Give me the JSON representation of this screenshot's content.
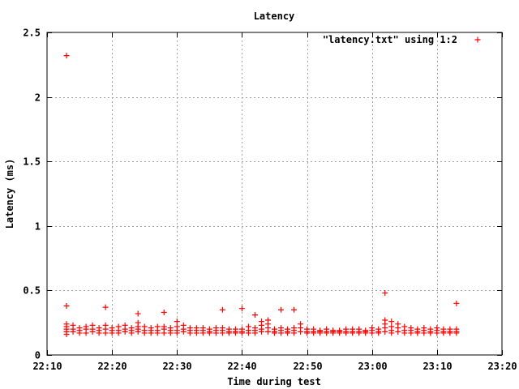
{
  "chart_data": {
    "type": "scatter",
    "title": "Latency",
    "xlabel": "Time during test",
    "ylabel": "Latency (ms)",
    "legend_position": "top-right",
    "grid": true,
    "xlim": [
      "22:10",
      "23:20"
    ],
    "ylim": [
      0,
      2.5
    ],
    "x_ticks": [
      "22:10",
      "22:20",
      "22:30",
      "22:40",
      "22:50",
      "23:00",
      "23:10",
      "23:20"
    ],
    "y_ticks": [
      "0",
      "0.5",
      "1",
      "1.5",
      "2",
      "2.5"
    ],
    "series": [
      {
        "name": "\"latency.txt\" using 1:2",
        "color": "#ff0000",
        "marker": "plus",
        "points": [
          [
            "22:13",
            2.32
          ],
          [
            "22:13",
            0.38
          ],
          [
            "22:13",
            0.24
          ],
          [
            "22:13",
            0.22
          ],
          [
            "22:13",
            0.2
          ],
          [
            "22:13",
            0.18
          ],
          [
            "22:13",
            0.16
          ],
          [
            "22:14",
            0.23
          ],
          [
            "22:14",
            0.2
          ],
          [
            "22:14",
            0.18
          ],
          [
            "22:15",
            0.21
          ],
          [
            "22:15",
            0.19
          ],
          [
            "22:15",
            0.17
          ],
          [
            "22:16",
            0.22
          ],
          [
            "22:16",
            0.2
          ],
          [
            "22:16",
            0.17
          ],
          [
            "22:17",
            0.23
          ],
          [
            "22:17",
            0.2
          ],
          [
            "22:17",
            0.18
          ],
          [
            "22:18",
            0.21
          ],
          [
            "22:18",
            0.19
          ],
          [
            "22:18",
            0.17
          ],
          [
            "22:19",
            0.37
          ],
          [
            "22:19",
            0.23
          ],
          [
            "22:19",
            0.2
          ],
          [
            "22:19",
            0.17
          ],
          [
            "22:20",
            0.21
          ],
          [
            "22:20",
            0.19
          ],
          [
            "22:20",
            0.17
          ],
          [
            "22:21",
            0.22
          ],
          [
            "22:21",
            0.19
          ],
          [
            "22:21",
            0.17
          ],
          [
            "22:22",
            0.23
          ],
          [
            "22:22",
            0.2
          ],
          [
            "22:22",
            0.18
          ],
          [
            "22:23",
            0.21
          ],
          [
            "22:23",
            0.19
          ],
          [
            "22:23",
            0.17
          ],
          [
            "22:24",
            0.32
          ],
          [
            "22:24",
            0.25
          ],
          [
            "22:24",
            0.22
          ],
          [
            "22:24",
            0.2
          ],
          [
            "22:24",
            0.18
          ],
          [
            "22:25",
            0.22
          ],
          [
            "22:25",
            0.19
          ],
          [
            "22:25",
            0.17
          ],
          [
            "22:26",
            0.21
          ],
          [
            "22:26",
            0.19
          ],
          [
            "22:26",
            0.17
          ],
          [
            "22:27",
            0.22
          ],
          [
            "22:27",
            0.19
          ],
          [
            "22:27",
            0.17
          ],
          [
            "22:28",
            0.33
          ],
          [
            "22:28",
            0.22
          ],
          [
            "22:28",
            0.2
          ],
          [
            "22:28",
            0.17
          ],
          [
            "22:29",
            0.21
          ],
          [
            "22:29",
            0.19
          ],
          [
            "22:29",
            0.17
          ],
          [
            "22:30",
            0.26
          ],
          [
            "22:30",
            0.22
          ],
          [
            "22:30",
            0.19
          ],
          [
            "22:30",
            0.17
          ],
          [
            "22:31",
            0.23
          ],
          [
            "22:31",
            0.2
          ],
          [
            "22:31",
            0.18
          ],
          [
            "22:32",
            0.21
          ],
          [
            "22:32",
            0.19
          ],
          [
            "22:32",
            0.17
          ],
          [
            "22:33",
            0.21
          ],
          [
            "22:33",
            0.19
          ],
          [
            "22:33",
            0.17
          ],
          [
            "22:34",
            0.21
          ],
          [
            "22:34",
            0.19
          ],
          [
            "22:34",
            0.17
          ],
          [
            "22:35",
            0.2
          ],
          [
            "22:35",
            0.18
          ],
          [
            "22:35",
            0.17
          ],
          [
            "22:36",
            0.21
          ],
          [
            "22:36",
            0.19
          ],
          [
            "22:36",
            0.17
          ],
          [
            "22:37",
            0.35
          ],
          [
            "22:37",
            0.21
          ],
          [
            "22:37",
            0.19
          ],
          [
            "22:37",
            0.17
          ],
          [
            "22:38",
            0.2
          ],
          [
            "22:38",
            0.18
          ],
          [
            "22:38",
            0.17
          ],
          [
            "22:39",
            0.2
          ],
          [
            "22:39",
            0.18
          ],
          [
            "22:39",
            0.17
          ],
          [
            "22:40",
            0.36
          ],
          [
            "22:40",
            0.2
          ],
          [
            "22:40",
            0.18
          ],
          [
            "22:40",
            0.17
          ],
          [
            "22:41",
            0.22
          ],
          [
            "22:41",
            0.19
          ],
          [
            "22:41",
            0.17
          ],
          [
            "22:42",
            0.31
          ],
          [
            "22:42",
            0.21
          ],
          [
            "22:42",
            0.19
          ],
          [
            "22:42",
            0.17
          ],
          [
            "22:43",
            0.26
          ],
          [
            "22:43",
            0.23
          ],
          [
            "22:43",
            0.2
          ],
          [
            "22:43",
            0.18
          ],
          [
            "22:44",
            0.27
          ],
          [
            "22:44",
            0.24
          ],
          [
            "22:44",
            0.21
          ],
          [
            "22:44",
            0.18
          ],
          [
            "22:45",
            0.2
          ],
          [
            "22:45",
            0.18
          ],
          [
            "22:45",
            0.17
          ],
          [
            "22:46",
            0.35
          ],
          [
            "22:46",
            0.21
          ],
          [
            "22:46",
            0.19
          ],
          [
            "22:46",
            0.17
          ],
          [
            "22:47",
            0.2
          ],
          [
            "22:47",
            0.18
          ],
          [
            "22:47",
            0.17
          ],
          [
            "22:48",
            0.35
          ],
          [
            "22:48",
            0.21
          ],
          [
            "22:48",
            0.19
          ],
          [
            "22:48",
            0.17
          ],
          [
            "22:49",
            0.24
          ],
          [
            "22:49",
            0.21
          ],
          [
            "22:49",
            0.18
          ],
          [
            "22:50",
            0.2
          ],
          [
            "22:50",
            0.18
          ],
          [
            "22:50",
            0.17
          ],
          [
            "22:51",
            0.2
          ],
          [
            "22:51",
            0.18
          ],
          [
            "22:51",
            0.17
          ],
          [
            "22:52",
            0.19
          ],
          [
            "22:52",
            0.18
          ],
          [
            "22:52",
            0.17
          ],
          [
            "22:53",
            0.2
          ],
          [
            "22:53",
            0.18
          ],
          [
            "22:53",
            0.17
          ],
          [
            "22:54",
            0.19
          ],
          [
            "22:54",
            0.18
          ],
          [
            "22:54",
            0.17
          ],
          [
            "22:55",
            0.19
          ],
          [
            "22:55",
            0.18
          ],
          [
            "22:55",
            0.17
          ],
          [
            "22:56",
            0.2
          ],
          [
            "22:56",
            0.18
          ],
          [
            "22:56",
            0.17
          ],
          [
            "22:57",
            0.2
          ],
          [
            "22:57",
            0.18
          ],
          [
            "22:57",
            0.17
          ],
          [
            "22:58",
            0.2
          ],
          [
            "22:58",
            0.18
          ],
          [
            "22:58",
            0.17
          ],
          [
            "22:59",
            0.19
          ],
          [
            "22:59",
            0.18
          ],
          [
            "22:59",
            0.17
          ],
          [
            "23:00",
            0.21
          ],
          [
            "23:00",
            0.19
          ],
          [
            "23:00",
            0.17
          ],
          [
            "23:01",
            0.2
          ],
          [
            "23:01",
            0.18
          ],
          [
            "23:01",
            0.17
          ],
          [
            "23:02",
            0.48
          ],
          [
            "23:02",
            0.27
          ],
          [
            "23:02",
            0.24
          ],
          [
            "23:02",
            0.21
          ],
          [
            "23:02",
            0.18
          ],
          [
            "23:03",
            0.26
          ],
          [
            "23:03",
            0.22
          ],
          [
            "23:03",
            0.19
          ],
          [
            "23:03",
            0.17
          ],
          [
            "23:04",
            0.24
          ],
          [
            "23:04",
            0.21
          ],
          [
            "23:04",
            0.18
          ],
          [
            "23:05",
            0.22
          ],
          [
            "23:05",
            0.19
          ],
          [
            "23:05",
            0.17
          ],
          [
            "23:06",
            0.21
          ],
          [
            "23:06",
            0.19
          ],
          [
            "23:06",
            0.17
          ],
          [
            "23:07",
            0.2
          ],
          [
            "23:07",
            0.18
          ],
          [
            "23:07",
            0.17
          ],
          [
            "23:08",
            0.21
          ],
          [
            "23:08",
            0.19
          ],
          [
            "23:08",
            0.17
          ],
          [
            "23:09",
            0.2
          ],
          [
            "23:09",
            0.18
          ],
          [
            "23:09",
            0.17
          ],
          [
            "23:10",
            0.21
          ],
          [
            "23:10",
            0.19
          ],
          [
            "23:10",
            0.17
          ],
          [
            "23:11",
            0.2
          ],
          [
            "23:11",
            0.18
          ],
          [
            "23:11",
            0.17
          ],
          [
            "23:12",
            0.2
          ],
          [
            "23:12",
            0.18
          ],
          [
            "23:12",
            0.17
          ],
          [
            "23:13",
            0.4
          ],
          [
            "23:13",
            0.2
          ],
          [
            "23:13",
            0.18
          ],
          [
            "23:13",
            0.17
          ]
        ]
      }
    ]
  }
}
